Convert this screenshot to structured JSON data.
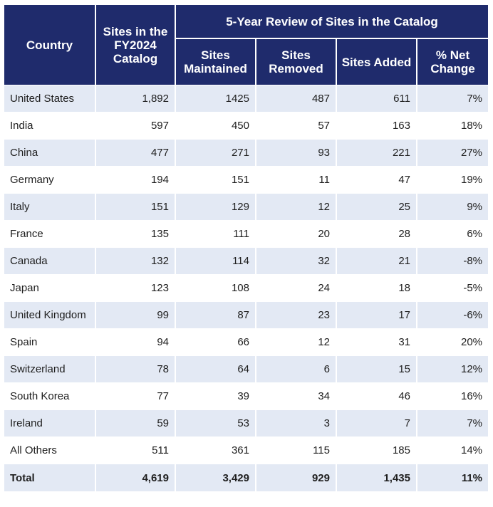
{
  "header": {
    "country": "Country",
    "sites_fy2024": "Sites in the FY2024 Catalog",
    "review_group": "5-Year Review of Sites in the Catalog",
    "maintained": "Sites Maintained",
    "removed": "Sites Removed",
    "added": "Sites Added",
    "net_change": "% Net Change"
  },
  "rows": [
    {
      "country": "United States",
      "fy2024": "1,892",
      "maintained": "1425",
      "removed": "487",
      "added": "611",
      "net": "7%"
    },
    {
      "country": "India",
      "fy2024": "597",
      "maintained": "450",
      "removed": "57",
      "added": "163",
      "net": "18%"
    },
    {
      "country": "China",
      "fy2024": "477",
      "maintained": "271",
      "removed": "93",
      "added": "221",
      "net": "27%"
    },
    {
      "country": "Germany",
      "fy2024": "194",
      "maintained": "151",
      "removed": "11",
      "added": "47",
      "net": "19%"
    },
    {
      "country": "Italy",
      "fy2024": "151",
      "maintained": "129",
      "removed": "12",
      "added": "25",
      "net": "9%"
    },
    {
      "country": "France",
      "fy2024": "135",
      "maintained": "111",
      "removed": "20",
      "added": "28",
      "net": "6%"
    },
    {
      "country": "Canada",
      "fy2024": "132",
      "maintained": "114",
      "removed": "32",
      "added": "21",
      "net": "-8%"
    },
    {
      "country": "Japan",
      "fy2024": "123",
      "maintained": "108",
      "removed": "24",
      "added": "18",
      "net": "-5%"
    },
    {
      "country": "United Kingdom",
      "fy2024": "99",
      "maintained": "87",
      "removed": "23",
      "added": "17",
      "net": "-6%"
    },
    {
      "country": "Spain",
      "fy2024": "94",
      "maintained": "66",
      "removed": "12",
      "added": "31",
      "net": "20%"
    },
    {
      "country": "Switzerland",
      "fy2024": "78",
      "maintained": "64",
      "removed": "6",
      "added": "15",
      "net": "12%"
    },
    {
      "country": "South Korea",
      "fy2024": "77",
      "maintained": "39",
      "removed": "34",
      "added": "46",
      "net": "16%"
    },
    {
      "country": "Ireland",
      "fy2024": "59",
      "maintained": "53",
      "removed": "3",
      "added": "7",
      "net": "7%"
    },
    {
      "country": "All Others",
      "fy2024": "511",
      "maintained": "361",
      "removed": "115",
      "added": "185",
      "net": "14%"
    }
  ],
  "total": {
    "country": "Total",
    "fy2024": "4,619",
    "maintained": "3,429",
    "removed": "929",
    "added": "1,435",
    "net": "11%"
  },
  "colors": {
    "header_bg": "#1f2b6c",
    "stripe_bg": "#e3e9f4"
  }
}
